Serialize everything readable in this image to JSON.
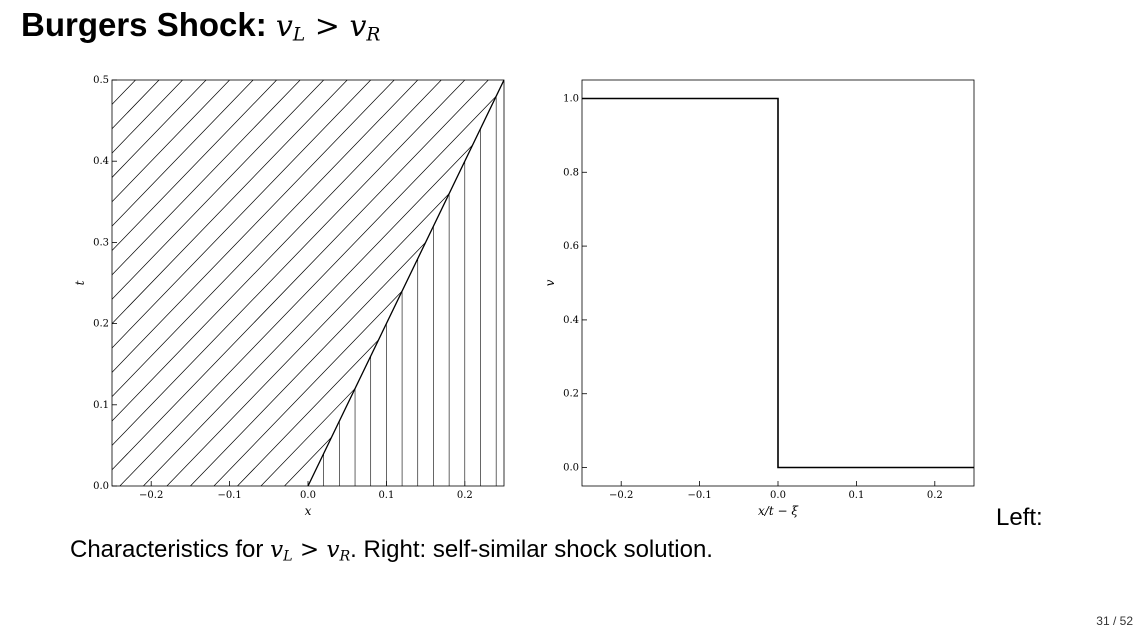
{
  "slide": {
    "title_text": "Burgers Shock: ",
    "title_math_v": "v",
    "title_math_sub_left": "L",
    "title_math_op": " > ",
    "title_math_v2": "v",
    "title_math_sub_right": "R",
    "side_word": "Left:",
    "caption_before": "Characteristics for ",
    "caption_v": "v",
    "caption_sub_left": "L",
    "caption_op": " > ",
    "caption_v2": "v",
    "caption_sub_right": "R",
    "caption_after": ". Right: self-similar shock solution.",
    "page_number": "31 / 52"
  },
  "chart_data": [
    {
      "type": "line",
      "title": "",
      "xlabel": "x",
      "ylabel": "t",
      "xlim": [
        -0.25,
        0.25
      ],
      "ylim": [
        0.0,
        0.5
      ],
      "xticks": [
        -0.2,
        -0.1,
        0.0,
        0.1,
        0.2
      ],
      "xtick_labels": [
        "−0.2",
        "−0.1",
        "0.0",
        "0.1",
        "0.2"
      ],
      "yticks": [
        0.0,
        0.1,
        0.2,
        0.3,
        0.4,
        0.5
      ],
      "ytick_labels": [
        "0.0",
        "0.1",
        "0.2",
        "0.3",
        "0.4",
        "0.5"
      ],
      "shock": {
        "x0": 0.0,
        "speed": 0.5
      },
      "left_characteristics": {
        "slope_dx_dt": 1.0,
        "x_starts": [
          -0.75,
          -0.72,
          -0.69,
          -0.66,
          -0.63,
          -0.6,
          -0.57,
          -0.54,
          -0.51,
          -0.48,
          -0.45,
          -0.42,
          -0.39,
          -0.36,
          -0.33,
          -0.3,
          -0.27,
          -0.24,
          -0.21,
          -0.18,
          -0.15,
          -0.12,
          -0.09,
          -0.06,
          -0.03,
          0.0
        ]
      },
      "right_characteristics": {
        "slope_dx_dt": 0.0,
        "x_positions": [
          0.02,
          0.04,
          0.06,
          0.08,
          0.1,
          0.12,
          0.14,
          0.16,
          0.18,
          0.2,
          0.22,
          0.24
        ]
      }
    },
    {
      "type": "line",
      "title": "",
      "xlabel": "x/t − ξ",
      "ylabel": "v",
      "xlim": [
        -0.25,
        0.25
      ],
      "ylim": [
        -0.05,
        1.05
      ],
      "xticks": [
        -0.2,
        -0.1,
        0.0,
        0.1,
        0.2
      ],
      "xtick_labels": [
        "−0.2",
        "−0.1",
        "0.0",
        "0.1",
        "0.2"
      ],
      "yticks": [
        0.0,
        0.2,
        0.4,
        0.6,
        0.8,
        1.0
      ],
      "ytick_labels": [
        "0.0",
        "0.2",
        "0.4",
        "0.6",
        "0.8",
        "1.0"
      ],
      "series": [
        {
          "x": [
            -0.25,
            0.0,
            0.0,
            0.25
          ],
          "y": [
            1.0,
            1.0,
            0.0,
            0.0
          ]
        }
      ]
    }
  ]
}
